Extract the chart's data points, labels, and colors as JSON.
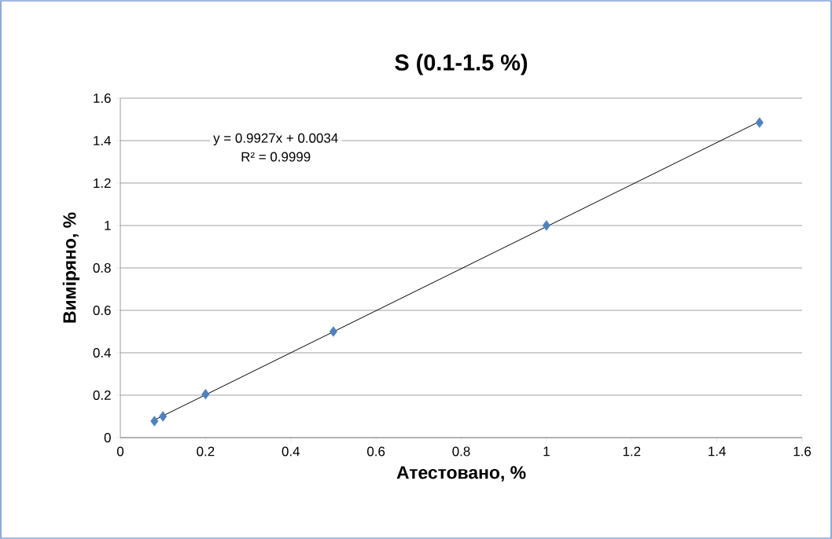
{
  "chart_data": {
    "type": "scatter",
    "title": "S (0.1-1.5 %)",
    "xlabel": "Атестовано, %",
    "ylabel": "Виміряно, %",
    "annotations": [
      "y = 0.9927x + 0.0034",
      "R² = 0.9999"
    ],
    "series": [
      {
        "color": "#4f81bd",
        "marker": "diamond",
        "x": [
          0.08,
          0.1,
          0.2,
          0.5,
          1.0,
          1.5
        ],
        "values": [
          0.078,
          0.1,
          0.205,
          0.5,
          1.0,
          1.485
        ]
      },
      {
        "type": "line",
        "color": "#000000",
        "marker": "none",
        "line_style": "solid",
        "x": [
          0.08,
          1.5
        ],
        "values": [
          0.083,
          1.49
        ]
      }
    ],
    "xlim": [
      0,
      1.6
    ],
    "ylim": [
      0,
      1.6
    ],
    "xticks": [
      0,
      0.2,
      0.4,
      0.6,
      0.8,
      1,
      1.2,
      1.4,
      1.6
    ],
    "yticks": [
      0,
      0.2,
      0.4,
      0.6,
      0.8,
      1,
      1.2,
      1.4,
      1.6
    ],
    "grid": "y"
  }
}
